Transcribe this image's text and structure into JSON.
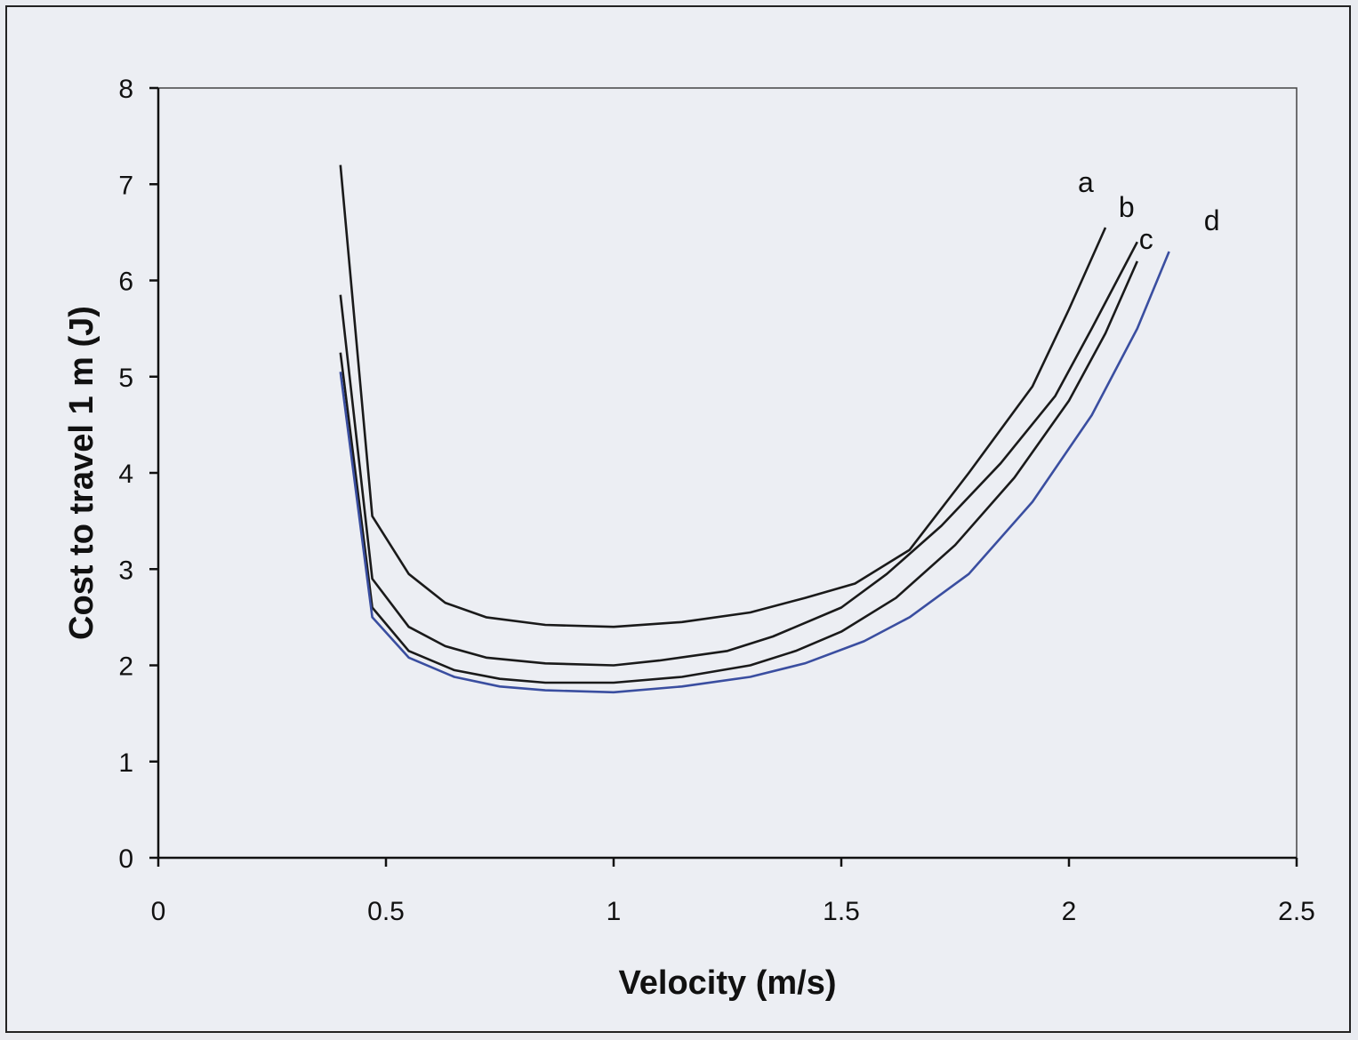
{
  "chart_data": {
    "type": "line",
    "title": "",
    "xlabel": "Velocity (m/s)",
    "ylabel": "Cost to travel 1 m (J)",
    "xlim": [
      0,
      2.5
    ],
    "ylim": [
      0,
      8
    ],
    "xticks": [
      "0",
      "0.5",
      "1",
      "1.5",
      "2",
      "2.5"
    ],
    "yticks": [
      "0",
      "1",
      "2",
      "3",
      "4",
      "5",
      "6",
      "7",
      "8"
    ],
    "grid": false,
    "legend": "inline labels near line ends",
    "series": [
      {
        "name": "a",
        "color": "#1a1a1a",
        "x": [
          0.4,
          0.47,
          0.55,
          0.63,
          0.72,
          0.85,
          1.0,
          1.15,
          1.3,
          1.42,
          1.53,
          1.65,
          1.78,
          1.92,
          2.0,
          2.08
        ],
        "y": [
          7.2,
          3.55,
          2.95,
          2.65,
          2.5,
          2.42,
          2.4,
          2.45,
          2.55,
          2.7,
          2.85,
          3.2,
          4.0,
          4.9,
          5.7,
          6.55
        ]
      },
      {
        "name": "b",
        "color": "#1a1a1a",
        "x": [
          0.4,
          0.47,
          0.55,
          0.63,
          0.72,
          0.85,
          1.0,
          1.1,
          1.25,
          1.35,
          1.5,
          1.6,
          1.72,
          1.85,
          1.97,
          2.05,
          2.15
        ],
        "y": [
          5.85,
          2.9,
          2.4,
          2.2,
          2.08,
          2.02,
          2.0,
          2.05,
          2.15,
          2.3,
          2.6,
          2.95,
          3.45,
          4.1,
          4.8,
          5.5,
          6.4
        ]
      },
      {
        "name": "c",
        "color": "#1a1a1a",
        "x": [
          0.4,
          0.47,
          0.55,
          0.65,
          0.75,
          0.85,
          1.0,
          1.15,
          1.3,
          1.4,
          1.5,
          1.62,
          1.75,
          1.88,
          2.0,
          2.08,
          2.15
        ],
        "y": [
          5.25,
          2.6,
          2.15,
          1.95,
          1.86,
          1.82,
          1.82,
          1.88,
          2.0,
          2.15,
          2.35,
          2.7,
          3.25,
          3.95,
          4.75,
          5.45,
          6.2
        ]
      },
      {
        "name": "d",
        "color": "#3a4ea0",
        "x": [
          0.4,
          0.47,
          0.55,
          0.65,
          0.75,
          0.85,
          1.0,
          1.15,
          1.3,
          1.42,
          1.55,
          1.65,
          1.78,
          1.92,
          2.05,
          2.15,
          2.22
        ],
        "y": [
          5.05,
          2.5,
          2.08,
          1.88,
          1.78,
          1.74,
          1.72,
          1.78,
          1.88,
          2.02,
          2.25,
          2.5,
          2.95,
          3.7,
          4.6,
          5.5,
          6.3
        ]
      }
    ]
  }
}
